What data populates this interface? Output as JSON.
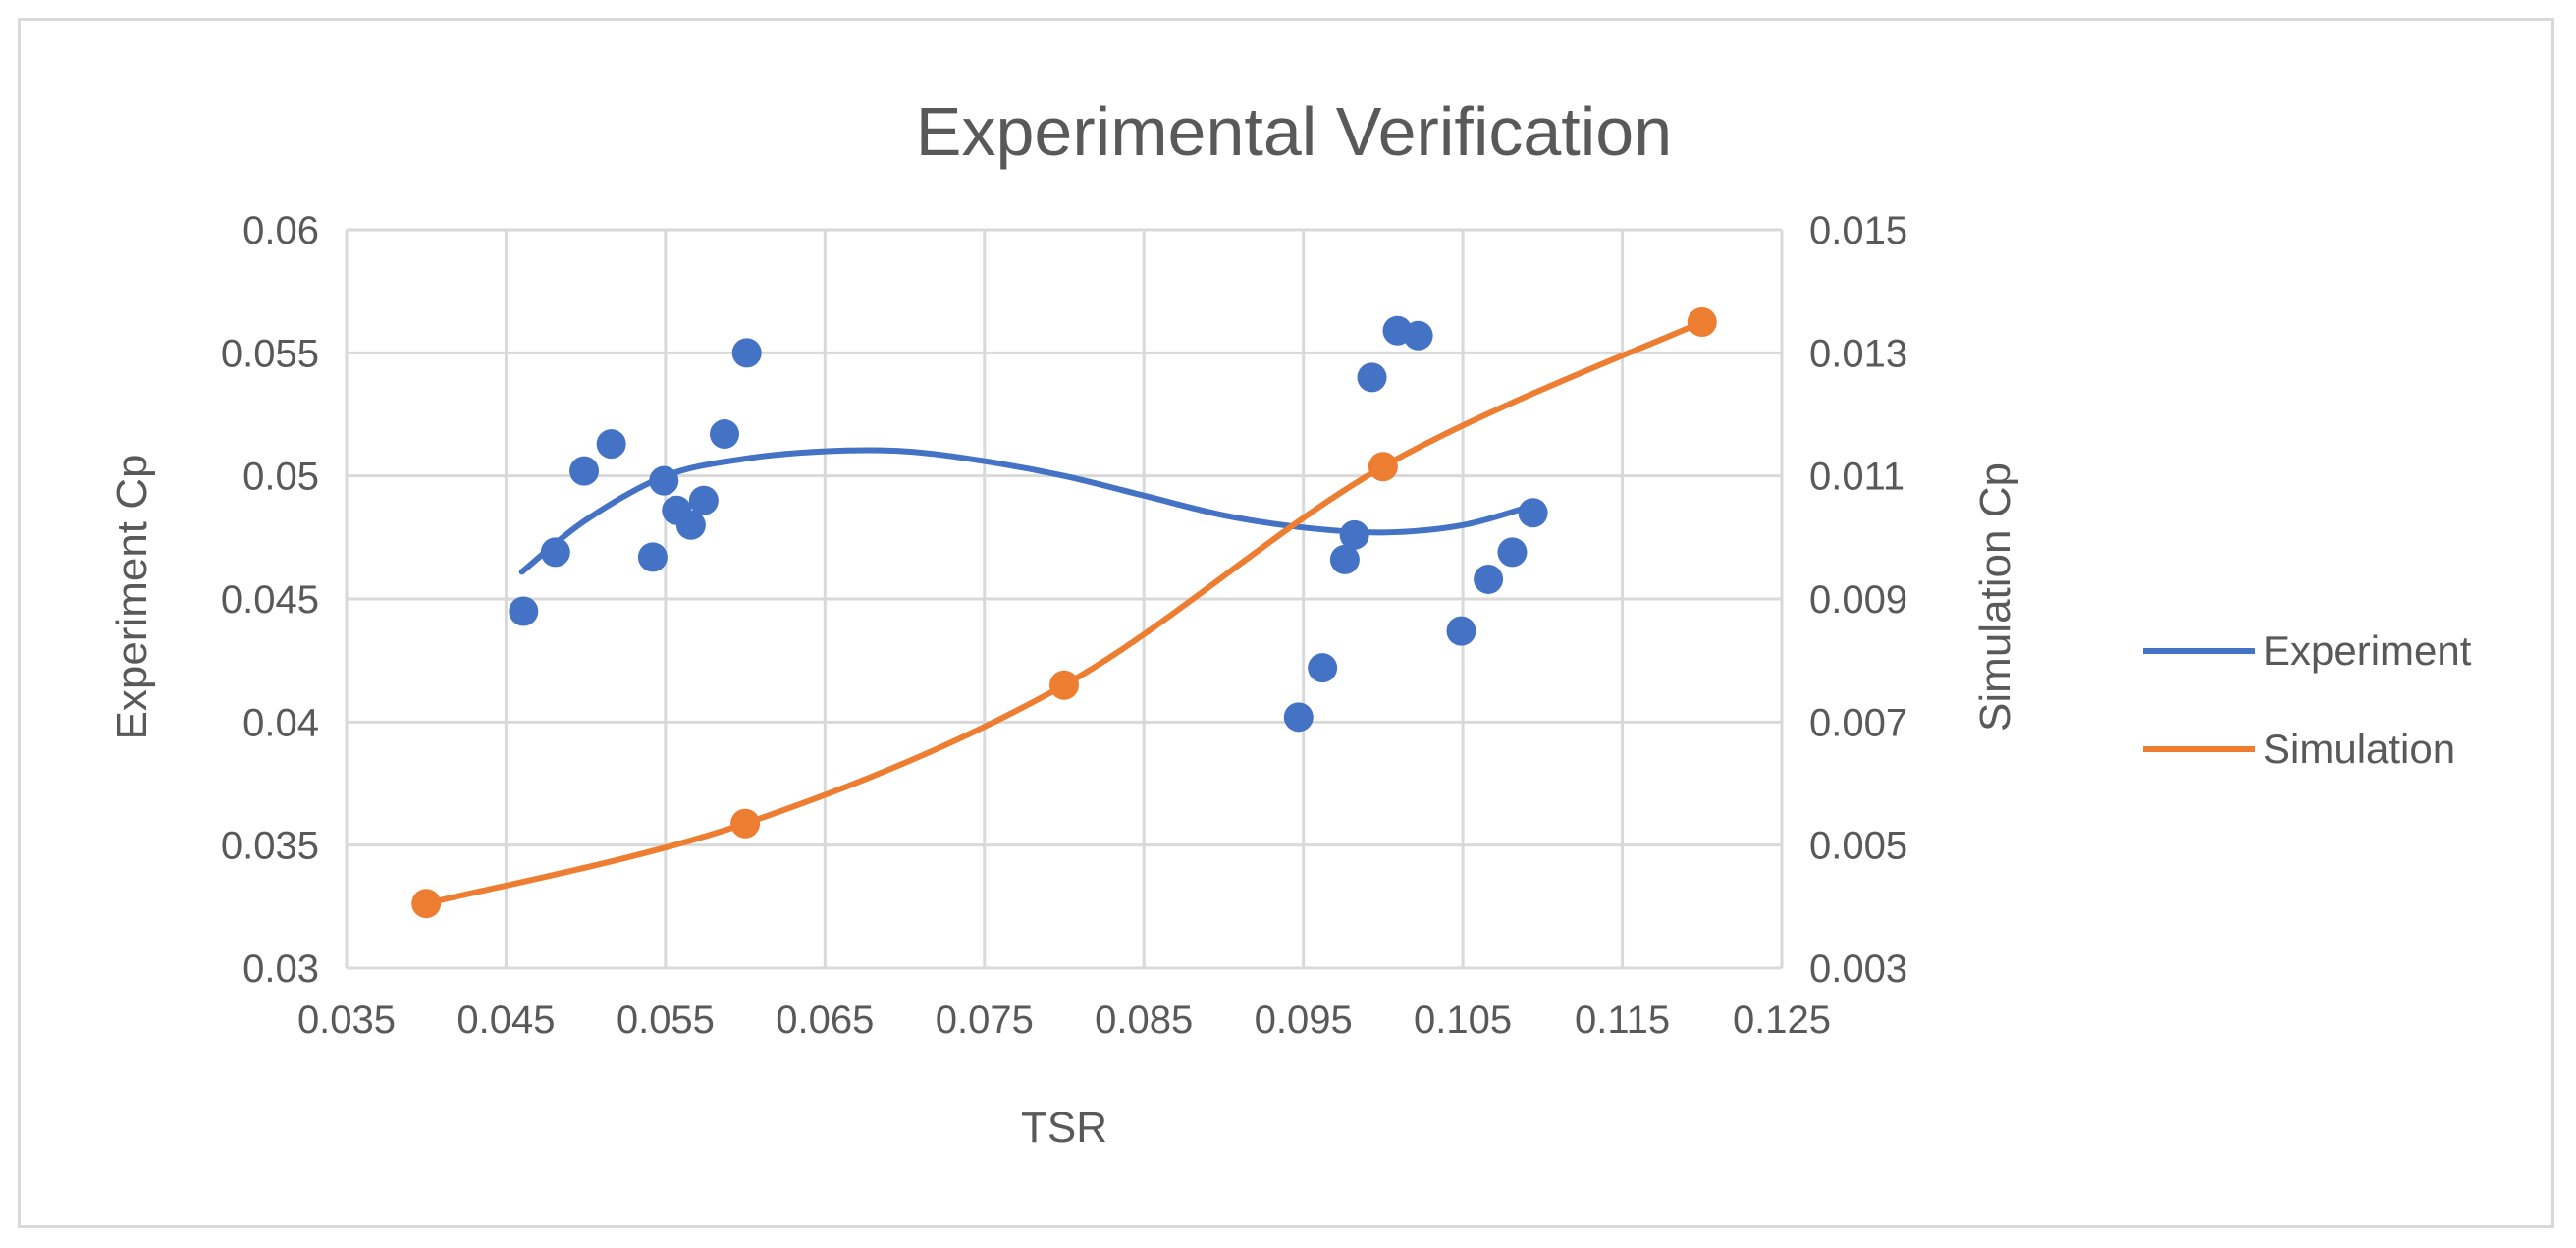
{
  "chart_data": {
    "type": "scatter",
    "title": "Experimental Verification",
    "xlabel": "TSR",
    "ylabel_left": "Experiment Cp",
    "ylabel_right": "Simulation Cp",
    "xlim": [
      0.035,
      0.125
    ],
    "ylim_left": [
      0.03,
      0.06
    ],
    "ylim_right": [
      0.003,
      0.015
    ],
    "x_ticks": [
      "0.035",
      "0.045",
      "0.055",
      "0.065",
      "0.075",
      "0.085",
      "0.095",
      "0.105",
      "0.115",
      "0.125"
    ],
    "y_ticks_left": [
      "0.03",
      "0.035",
      "0.04",
      "0.045",
      "0.05",
      "0.055",
      "0.06"
    ],
    "y_ticks_right": [
      "0.003",
      "0.005",
      "0.007",
      "0.009",
      "0.011",
      "0.013",
      "0.015"
    ],
    "grid": true,
    "legend_position": "right",
    "colors": {
      "experiment": "#4472C4",
      "simulation": "#ED7D31",
      "grid": "#d9d9d9",
      "text": "#595959"
    },
    "series": [
      {
        "name": "Experiment",
        "axis": "left",
        "markers_only": true,
        "trendline": "polynomial",
        "points": [
          {
            "x": 0.0461,
            "y": 0.0445
          },
          {
            "x": 0.0481,
            "y": 0.0469
          },
          {
            "x": 0.0499,
            "y": 0.0502
          },
          {
            "x": 0.0516,
            "y": 0.0513
          },
          {
            "x": 0.0542,
            "y": 0.0467
          },
          {
            "x": 0.0549,
            "y": 0.0498
          },
          {
            "x": 0.0557,
            "y": 0.0486
          },
          {
            "x": 0.0566,
            "y": 0.048
          },
          {
            "x": 0.0574,
            "y": 0.049
          },
          {
            "x": 0.0587,
            "y": 0.0517
          },
          {
            "x": 0.0601,
            "y": 0.055
          },
          {
            "x": 0.0947,
            "y": 0.0402
          },
          {
            "x": 0.0962,
            "y": 0.0422
          },
          {
            "x": 0.0976,
            "y": 0.0466
          },
          {
            "x": 0.0982,
            "y": 0.0476
          },
          {
            "x": 0.0993,
            "y": 0.054
          },
          {
            "x": 0.1009,
            "y": 0.0559
          },
          {
            "x": 0.1022,
            "y": 0.0557
          },
          {
            "x": 0.1049,
            "y": 0.0437
          },
          {
            "x": 0.1066,
            "y": 0.0458
          },
          {
            "x": 0.1081,
            "y": 0.0469
          },
          {
            "x": 0.1094,
            "y": 0.0485
          }
        ],
        "trend_points": [
          {
            "x": 0.046,
            "y": 0.0461
          },
          {
            "x": 0.05,
            "y": 0.0482
          },
          {
            "x": 0.055,
            "y": 0.05
          },
          {
            "x": 0.06,
            "y": 0.0507
          },
          {
            "x": 0.065,
            "y": 0.051
          },
          {
            "x": 0.07,
            "y": 0.051
          },
          {
            "x": 0.075,
            "y": 0.0506
          },
          {
            "x": 0.08,
            "y": 0.05
          },
          {
            "x": 0.085,
            "y": 0.0492
          },
          {
            "x": 0.09,
            "y": 0.0484
          },
          {
            "x": 0.095,
            "y": 0.0479
          },
          {
            "x": 0.1,
            "y": 0.0477
          },
          {
            "x": 0.105,
            "y": 0.048
          },
          {
            "x": 0.1094,
            "y": 0.0488
          }
        ]
      },
      {
        "name": "Simulation",
        "axis": "right",
        "markers_only": false,
        "points": [
          {
            "x": 0.04,
            "y": 0.00405
          },
          {
            "x": 0.06,
            "y": 0.00535
          },
          {
            "x": 0.08,
            "y": 0.0076
          },
          {
            "x": 0.1,
            "y": 0.01115
          },
          {
            "x": 0.12,
            "y": 0.0135
          }
        ]
      }
    ]
  }
}
